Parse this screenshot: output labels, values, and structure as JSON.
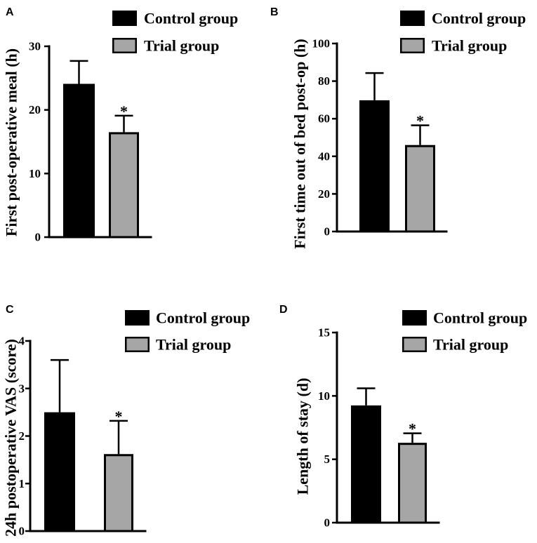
{
  "chart_data": [
    {
      "panel": "A",
      "type": "bar",
      "ylabel": "First post-operative meal (h)",
      "ylim": [
        0,
        30
      ],
      "yticks": [
        0,
        10,
        20,
        30
      ],
      "series": [
        {
          "name": "Control group",
          "value": 24.1,
          "error": 3.6,
          "color": "#000000"
        },
        {
          "name": "Trial group",
          "value": 16.5,
          "error": 2.6,
          "color": "#a6a6a6",
          "annotation": "*"
        }
      ]
    },
    {
      "panel": "B",
      "type": "bar",
      "ylabel": "First time out of bed post-op (h)",
      "ylim": [
        0,
        100
      ],
      "yticks": [
        0,
        20,
        40,
        60,
        80,
        100
      ],
      "series": [
        {
          "name": "Control group",
          "value": 69.8,
          "error": 14.5,
          "color": "#000000"
        },
        {
          "name": "Trial group",
          "value": 46.0,
          "error": 10.5,
          "color": "#a6a6a6",
          "annotation": "*"
        }
      ]
    },
    {
      "panel": "C",
      "type": "bar",
      "ylabel": "24h postoperative VAS (score)",
      "ylim": [
        0,
        4
      ],
      "yticks": [
        0,
        1,
        2,
        3,
        4
      ],
      "series": [
        {
          "name": "Control group",
          "value": 2.5,
          "error": 1.1,
          "color": "#000000"
        },
        {
          "name": "Trial group",
          "value": 1.62,
          "error": 0.7,
          "color": "#a6a6a6",
          "annotation": "*"
        }
      ]
    },
    {
      "panel": "D",
      "type": "bar",
      "ylabel": "Length of stay (d)",
      "ylim": [
        0,
        15
      ],
      "yticks": [
        0,
        5,
        10,
        15
      ],
      "series": [
        {
          "name": "Control group",
          "value": 9.25,
          "error": 1.35,
          "color": "#000000"
        },
        {
          "name": "Trial group",
          "value": 6.3,
          "error": 0.75,
          "color": "#a6a6a6",
          "annotation": "*"
        }
      ]
    }
  ]
}
